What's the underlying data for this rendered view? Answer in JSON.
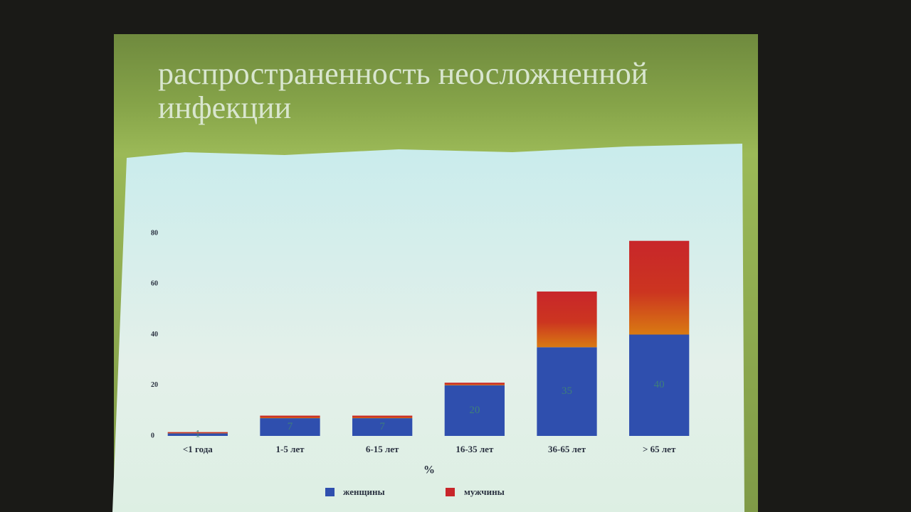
{
  "chart_data": {
    "type": "stacked_bar",
    "title": "распространенность неосложненной инфекции",
    "x_label": "%",
    "categories": [
      "<1 года",
      "1-5 лет",
      "6-15 лет",
      "16-35 лет",
      "36-65 лет",
      "> 65 лет"
    ],
    "series": [
      {
        "name": "женщины",
        "color": "#2f4fae",
        "values": [
          1,
          7,
          7,
          20,
          35,
          40
        ]
      },
      {
        "name": "мужчины",
        "color": "#c8262a",
        "values": [
          0.5,
          1,
          1,
          1,
          22,
          37
        ]
      }
    ],
    "ylim": [
      0,
      80
    ],
    "yticks": [
      0,
      20,
      40,
      60,
      80
    ]
  }
}
